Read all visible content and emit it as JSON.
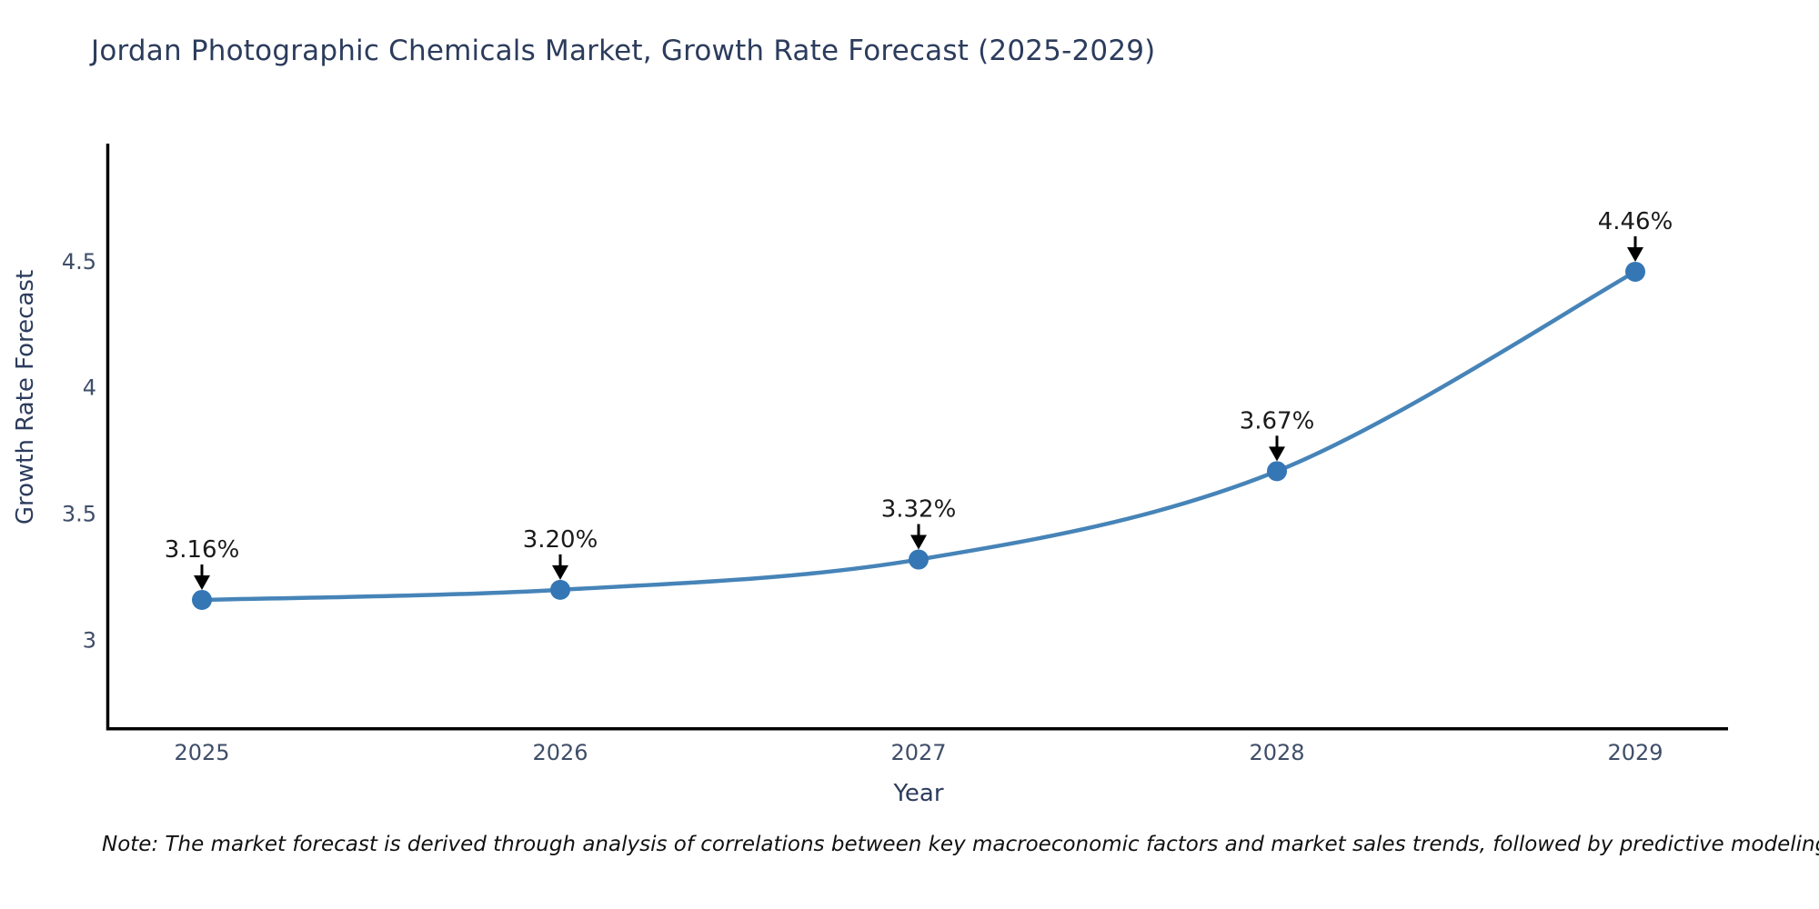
{
  "title": "Jordan Photographic Chemicals Market, Growth Rate Forecast (2025-2029)",
  "footnote": "Note: The market forecast is derived through analysis of correlations between key macroeconomic factors and market sales trends, followed by predictive modeling to project future sales",
  "chart_data": {
    "type": "line",
    "title": "Jordan Photographic Chemicals Market, Growth Rate Forecast (2025-2029)",
    "xlabel": "Year",
    "ylabel": "Growth Rate Forecast",
    "categories": [
      "2025",
      "2026",
      "2027",
      "2028",
      "2029"
    ],
    "values": [
      3.16,
      3.2,
      3.32,
      3.67,
      4.46
    ],
    "point_labels": [
      "3.16%",
      "3.20%",
      "3.32%",
      "3.67%",
      "4.46%"
    ],
    "yticks": [
      3,
      3.5,
      4,
      4.5
    ],
    "ytick_labels": [
      "3",
      "3.5",
      "4",
      "4.5"
    ],
    "ylim": [
      2.65,
      4.96
    ],
    "grid": false,
    "legend": "none",
    "annotation_style": "value above point with downward arrow",
    "colors": {
      "line": "#4684b8",
      "marker": "#3576b5",
      "annotation": "#1a1a1a",
      "arrow": "#000000",
      "axis": "#000000",
      "tick_label": "#3f4e69",
      "title": "#2c3c5c"
    }
  }
}
